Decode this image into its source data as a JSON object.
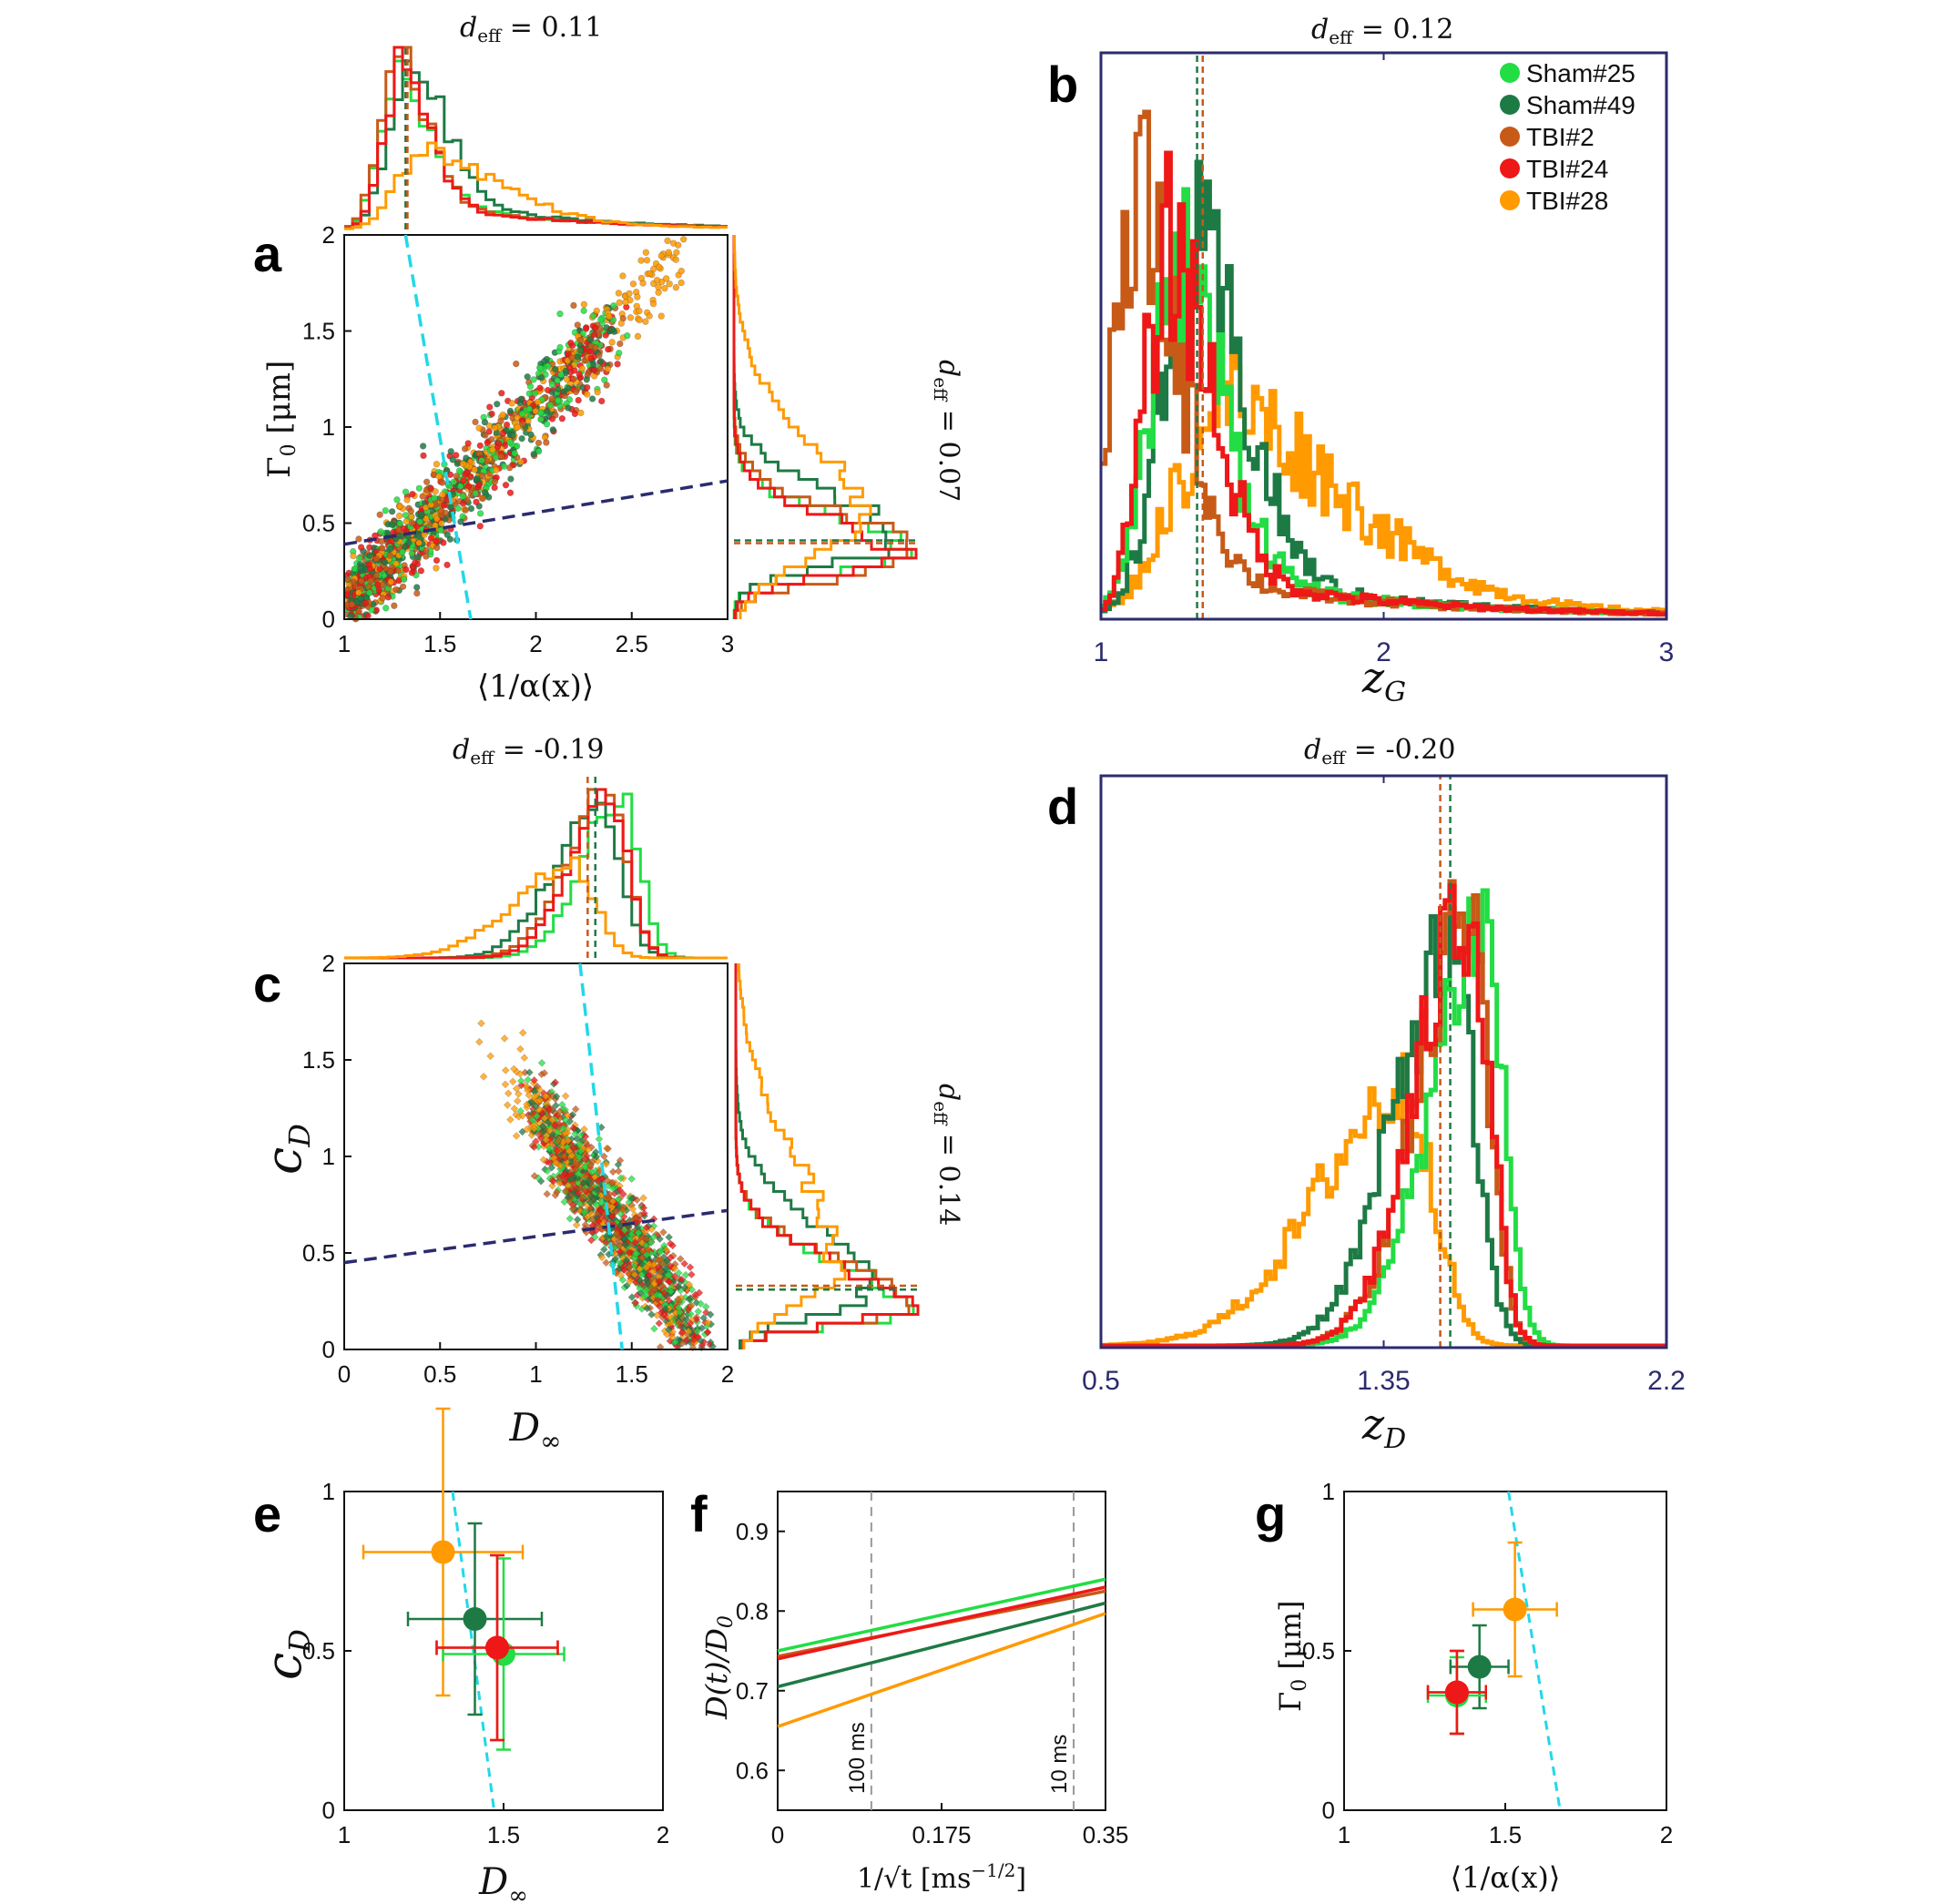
{
  "colors": {
    "sham25": "#22dd44",
    "sham49": "#1e7a45",
    "tbi2": "#c85a18",
    "tbi24": "#ee1818",
    "tbi28": "#ff9a00",
    "navy": "#2b2b6e",
    "cyan": "#22d8e8",
    "grey": "#999999"
  },
  "legend": [
    {
      "name": "Sham#25",
      "color": "#22dd44"
    },
    {
      "name": "Sham#49",
      "color": "#1e7a45"
    },
    {
      "name": "TBI#2",
      "color": "#c85a18"
    },
    {
      "name": "TBI#24",
      "color": "#ee1818"
    },
    {
      "name": "TBI#28",
      "color": "#ff9a00"
    }
  ],
  "panels": {
    "a": {
      "letter": "a",
      "deff_top": "0.11",
      "deff_right": "0.07",
      "ylabel_sym": "Γ",
      "ylabel_sub": "0",
      "ylabel_unit": "[μm]",
      "xlabel": "⟨1/α(x)⟩"
    },
    "b": {
      "letter": "b",
      "deff_top": "0.12",
      "xlabel_sym": "z",
      "xlabel_sub": "G"
    },
    "c": {
      "letter": "c",
      "deff_top": "-0.19",
      "deff_right": "0.14",
      "ylabel_sym": "c",
      "ylabel_sub": "D",
      "xlabel_sym": "D",
      "xlabel_sub": "∞"
    },
    "d": {
      "letter": "d",
      "deff_top": "-0.20",
      "xlabel_sym": "z",
      "xlabel_sub": "D"
    },
    "e": {
      "letter": "e",
      "ylabel_sym": "c",
      "ylabel_sub": "D",
      "xlabel_sym": "D",
      "xlabel_sub": "∞"
    },
    "f": {
      "letter": "f",
      "ylabel": "D(t)/D",
      "ylabel_sub": "0",
      "xlabel": "1/√t [ms",
      "xlabel_sup": "−1/2",
      "xlabel_end": "]",
      "vline_labels": [
        "100 ms",
        "10 ms"
      ]
    },
    "g": {
      "letter": "g",
      "ylabel_sym": "Γ",
      "ylabel_sub": "0",
      "ylabel_unit": "[μm]",
      "xlabel": "⟨1/α(x)⟩"
    }
  },
  "deff_prefix": "d",
  "deff_sub": "eff",
  "chart_data": [
    {
      "id": "a",
      "type": "scatter",
      "xlabel": "⟨1/α(x)⟩",
      "ylabel": "Γ0 [μm]",
      "xlim": [
        1,
        3
      ],
      "ylim": [
        0,
        2
      ],
      "xticks": [
        "1",
        "1.5",
        "2",
        "2.5",
        "3"
      ],
      "yticks": [
        "0",
        "0.5",
        "1",
        "1.5",
        "2"
      ],
      "xtick_values": [
        1,
        1.5,
        2,
        2.5,
        3
      ],
      "ytick_values": [
        0,
        0.5,
        1,
        1.5,
        2
      ],
      "navy_dashed_line": [
        [
          1,
          0.39
        ],
        [
          3,
          0.72
        ]
      ],
      "cyan_dashed_line": [
        [
          1.32,
          2.0
        ],
        [
          1.66,
          0.0
        ]
      ],
      "top_hist_mean_lines": [
        1.32,
        1.33
      ],
      "right_hist_mean_lines": [
        0.41,
        0.41
      ],
      "annotations": [
        "d_eff = 0.11",
        "d_eff = 0.07"
      ]
    },
    {
      "id": "b",
      "type": "histogram",
      "xlabel": "z_G",
      "xlim": [
        1,
        3
      ],
      "xticks": [
        "1",
        "2",
        "3"
      ],
      "xtick_values": [
        1,
        2,
        3
      ],
      "series": [
        {
          "name": "Sham#25",
          "peak": 1.26,
          "mean": 1.34
        },
        {
          "name": "Sham#49",
          "peak": 1.32,
          "mean": 1.34
        },
        {
          "name": "TBI#2",
          "peak": 1.12,
          "mean": 1.36
        },
        {
          "name": "TBI#24",
          "peak": 1.23,
          "mean": 1.35
        },
        {
          "name": "TBI#28",
          "peak": 1.37,
          "mean": 1.48
        }
      ],
      "mean_lines": [
        1.34,
        1.36
      ],
      "annotations": [
        "d_eff = 0.12"
      ]
    },
    {
      "id": "c",
      "type": "scatter",
      "xlabel": "D∞",
      "ylabel": "c_D",
      "xlim": [
        0,
        2
      ],
      "ylim": [
        0,
        2
      ],
      "xticks": [
        "0",
        "0.5",
        "1",
        "1.5",
        "2"
      ],
      "yticks": [
        "0",
        "0.5",
        "1",
        "1.5",
        "2"
      ],
      "xtick_values": [
        0,
        0.5,
        1,
        1.5,
        2
      ],
      "ytick_values": [
        0,
        0.5,
        1,
        1.5,
        2
      ],
      "navy_dashed_line": [
        [
          0,
          0.45
        ],
        [
          2,
          0.72
        ]
      ],
      "cyan_dashed_line": [
        [
          1.23,
          2.0
        ],
        [
          1.45,
          0.0
        ]
      ],
      "top_hist_mean_lines": [
        1.27,
        1.31
      ],
      "right_hist_mean_lines": [
        0.33,
        0.31
      ],
      "annotations": [
        "d_eff = -0.19",
        "d_eff = 0.14"
      ]
    },
    {
      "id": "d",
      "type": "histogram",
      "xlabel": "z_D",
      "xlim": [
        0.5,
        2.2
      ],
      "xticks": [
        "0.5",
        "1.35",
        "2.2"
      ],
      "xtick_values": [
        0.5,
        1.35,
        2.2
      ],
      "series": [
        {
          "name": "Sham#25",
          "peak": 1.65,
          "mean": 1.55
        },
        {
          "name": "Sham#49",
          "peak": 1.55,
          "mean": 1.53
        },
        {
          "name": "TBI#2",
          "peak": 1.61,
          "mean": 1.52
        },
        {
          "name": "TBI#24",
          "peak": 1.61,
          "mean": 1.52
        },
        {
          "name": "TBI#28",
          "peak": 1.42,
          "mean": 1.42
        }
      ],
      "mean_lines": [
        1.52,
        1.55
      ],
      "annotations": [
        "d_eff = -0.20"
      ]
    },
    {
      "id": "e",
      "type": "scatter",
      "xlabel": "D∞",
      "ylabel": "c_D",
      "xlim": [
        1,
        2
      ],
      "ylim": [
        0,
        1
      ],
      "xticks": [
        "1",
        "1.5",
        "2"
      ],
      "yticks": [
        "0",
        "0.5",
        "1"
      ],
      "xtick_values": [
        1,
        1.5,
        2
      ],
      "ytick_values": [
        0,
        0.5,
        1
      ],
      "cyan_dashed_line": [
        [
          1.34,
          1.0
        ],
        [
          1.47,
          0.0
        ]
      ],
      "points": [
        {
          "name": "TBI#28",
          "x": 1.31,
          "y": 0.81,
          "xerr": 0.25,
          "yerr": 0.45
        },
        {
          "name": "Sham#49",
          "x": 1.41,
          "y": 0.6,
          "xerr": 0.21,
          "yerr": 0.3
        },
        {
          "name": "Sham#25",
          "x": 1.5,
          "y": 0.49,
          "xerr": 0.19,
          "yerr": 0.3
        },
        {
          "name": "TBI#2",
          "x": 1.48,
          "y": 0.51,
          "xerr": 0.19,
          "yerr": 0.29
        },
        {
          "name": "TBI#24",
          "x": 1.48,
          "y": 0.51,
          "xerr": 0.19,
          "yerr": 0.29
        }
      ]
    },
    {
      "id": "f",
      "type": "line",
      "xlabel": "1/√t [ms^-1/2]",
      "ylabel": "D(t)/D0",
      "xlim": [
        0,
        0.35
      ],
      "ylim": [
        0.55,
        0.95
      ],
      "xticks": [
        "0",
        "0.175",
        "0.35"
      ],
      "yticks": [
        "0.6",
        "0.7",
        "0.8",
        "0.9"
      ],
      "xtick_values": [
        0,
        0.175,
        0.35
      ],
      "ytick_values": [
        0.6,
        0.7,
        0.8,
        0.9
      ],
      "vlines": [
        0.1,
        0.316
      ],
      "series": [
        {
          "name": "Sham#25",
          "x": [
            0,
            0.35
          ],
          "y": [
            0.75,
            0.84
          ]
        },
        {
          "name": "TBI#2",
          "x": [
            0,
            0.35
          ],
          "y": [
            0.743,
            0.825
          ]
        },
        {
          "name": "TBI#24",
          "x": [
            0,
            0.35
          ],
          "y": [
            0.74,
            0.83
          ]
        },
        {
          "name": "Sham#49",
          "x": [
            0,
            0.35
          ],
          "y": [
            0.705,
            0.81
          ]
        },
        {
          "name": "TBI#28",
          "x": [
            0,
            0.35
          ],
          "y": [
            0.655,
            0.797
          ]
        }
      ]
    },
    {
      "id": "g",
      "type": "scatter",
      "xlabel": "⟨1/α(x)⟩",
      "ylabel": "Γ0 [μm]",
      "xlim": [
        1,
        2
      ],
      "ylim": [
        0,
        1
      ],
      "xticks": [
        "1",
        "1.5",
        "2"
      ],
      "yticks": [
        "0",
        "0.5",
        "1"
      ],
      "xtick_values": [
        1,
        1.5,
        2
      ],
      "ytick_values": [
        0,
        0.5,
        1
      ],
      "cyan_dashed_line": [
        [
          1.51,
          1.0
        ],
        [
          1.67,
          0.0
        ]
      ],
      "points": [
        {
          "name": "TBI#28",
          "x": 1.53,
          "y": 0.63,
          "xerr": 0.13,
          "yerr": 0.21
        },
        {
          "name": "Sham#49",
          "x": 1.42,
          "y": 0.45,
          "xerr": 0.09,
          "yerr": 0.13
        },
        {
          "name": "Sham#25",
          "x": 1.35,
          "y": 0.36,
          "xerr": 0.09,
          "yerr": 0.12
        },
        {
          "name": "TBI#2",
          "x": 1.35,
          "y": 0.37,
          "xerr": 0.09,
          "yerr": 0.13
        },
        {
          "name": "TBI#24",
          "x": 1.35,
          "y": 0.37,
          "xerr": 0.09,
          "yerr": 0.13
        }
      ]
    }
  ]
}
